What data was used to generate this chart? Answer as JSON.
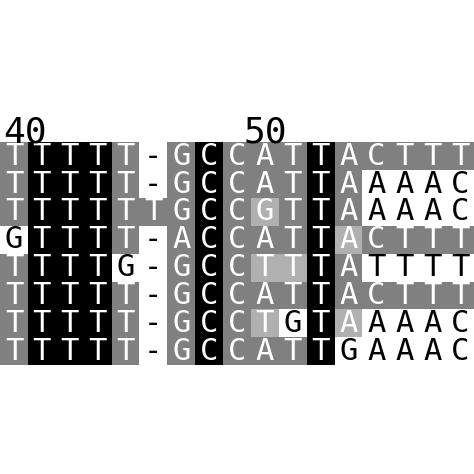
{
  "header_labels": [
    "40",
    "50"
  ],
  "rows": [
    [
      "T",
      "T",
      "T",
      "T",
      "T",
      "-",
      "G",
      "C",
      "C",
      "A",
      "T",
      "T",
      "A",
      "C",
      "T",
      "T",
      "T"
    ],
    [
      "T",
      "T",
      "T",
      "T",
      "T",
      "-",
      "G",
      "C",
      "C",
      "A",
      "T",
      "T",
      "A",
      "A",
      "A",
      "A",
      "C"
    ],
    [
      "T",
      "T",
      "T",
      "T",
      "T",
      "T",
      "G",
      "C",
      "C",
      "G",
      "T",
      "T",
      "A",
      "A",
      "A",
      "A",
      "C"
    ],
    [
      "G",
      "T",
      "T",
      "T",
      "T",
      "-",
      "A",
      "C",
      "C",
      "A",
      "T",
      "T",
      "A",
      "C",
      "T",
      "T",
      "T"
    ],
    [
      "T",
      "T",
      "T",
      "T",
      "G",
      "-",
      "G",
      "C",
      "C",
      "T",
      "T",
      "T",
      "A",
      "T",
      "T",
      "T",
      "T"
    ],
    [
      "T",
      "T",
      "T",
      "T",
      "T",
      "-",
      "G",
      "C",
      "C",
      "A",
      "T",
      "T",
      "A",
      "C",
      "T",
      "T",
      "T"
    ],
    [
      "T",
      "T",
      "T",
      "T",
      "T",
      "-",
      "G",
      "C",
      "C",
      "T",
      "G",
      "T",
      "A",
      "A",
      "A",
      "A",
      "C"
    ],
    [
      "T",
      "T",
      "T",
      "T",
      "T",
      "-",
      "G",
      "C",
      "C",
      "A",
      "T",
      "T",
      "G",
      "A",
      "A",
      "A",
      "C"
    ]
  ],
  "bg_colors": [
    [
      "#808080",
      "#000000",
      "#000000",
      "#000000",
      "#808080",
      "#ffffff",
      "#808080",
      "#000000",
      "#808080",
      "#808080",
      "#808080",
      "#000000",
      "#808080",
      "#808080",
      "#808080",
      "#808080",
      "#808080"
    ],
    [
      "#808080",
      "#000000",
      "#000000",
      "#000000",
      "#808080",
      "#ffffff",
      "#808080",
      "#000000",
      "#808080",
      "#808080",
      "#808080",
      "#000000",
      "#808080",
      "#ffffff",
      "#ffffff",
      "#ffffff",
      "#ffffff"
    ],
    [
      "#808080",
      "#000000",
      "#000000",
      "#000000",
      "#808080",
      "#808080",
      "#808080",
      "#000000",
      "#808080",
      "#b0b0b0",
      "#808080",
      "#000000",
      "#808080",
      "#ffffff",
      "#ffffff",
      "#ffffff",
      "#ffffff"
    ],
    [
      "#ffffff",
      "#000000",
      "#000000",
      "#000000",
      "#808080",
      "#ffffff",
      "#808080",
      "#000000",
      "#808080",
      "#808080",
      "#808080",
      "#000000",
      "#b0b0b0",
      "#808080",
      "#808080",
      "#808080",
      "#808080"
    ],
    [
      "#808080",
      "#000000",
      "#000000",
      "#000000",
      "#ffffff",
      "#ffffff",
      "#808080",
      "#000000",
      "#808080",
      "#b0b0b0",
      "#b0b0b0",
      "#000000",
      "#808080",
      "#ffffff",
      "#ffffff",
      "#ffffff",
      "#ffffff"
    ],
    [
      "#808080",
      "#000000",
      "#000000",
      "#000000",
      "#808080",
      "#ffffff",
      "#808080",
      "#000000",
      "#808080",
      "#808080",
      "#808080",
      "#000000",
      "#808080",
      "#808080",
      "#808080",
      "#808080",
      "#808080"
    ],
    [
      "#808080",
      "#000000",
      "#000000",
      "#000000",
      "#808080",
      "#ffffff",
      "#808080",
      "#000000",
      "#808080",
      "#b0b0b0",
      "#ffffff",
      "#000000",
      "#b0b0b0",
      "#ffffff",
      "#ffffff",
      "#ffffff",
      "#ffffff"
    ],
    [
      "#808080",
      "#000000",
      "#000000",
      "#000000",
      "#808080",
      "#ffffff",
      "#808080",
      "#000000",
      "#808080",
      "#808080",
      "#808080",
      "#000000",
      "#ffffff",
      "#ffffff",
      "#ffffff",
      "#ffffff",
      "#ffffff"
    ]
  ],
  "text_colors": [
    [
      "#ffffff",
      "#ffffff",
      "#ffffff",
      "#ffffff",
      "#ffffff",
      "#000000",
      "#ffffff",
      "#ffffff",
      "#ffffff",
      "#ffffff",
      "#ffffff",
      "#ffffff",
      "#ffffff",
      "#ffffff",
      "#ffffff",
      "#ffffff",
      "#ffffff"
    ],
    [
      "#ffffff",
      "#ffffff",
      "#ffffff",
      "#ffffff",
      "#ffffff",
      "#000000",
      "#ffffff",
      "#ffffff",
      "#ffffff",
      "#ffffff",
      "#ffffff",
      "#ffffff",
      "#ffffff",
      "#000000",
      "#000000",
      "#000000",
      "#000000"
    ],
    [
      "#ffffff",
      "#ffffff",
      "#ffffff",
      "#ffffff",
      "#ffffff",
      "#ffffff",
      "#ffffff",
      "#ffffff",
      "#ffffff",
      "#ffffff",
      "#ffffff",
      "#ffffff",
      "#ffffff",
      "#000000",
      "#000000",
      "#000000",
      "#000000"
    ],
    [
      "#000000",
      "#ffffff",
      "#ffffff",
      "#ffffff",
      "#ffffff",
      "#000000",
      "#ffffff",
      "#ffffff",
      "#ffffff",
      "#ffffff",
      "#ffffff",
      "#ffffff",
      "#ffffff",
      "#ffffff",
      "#ffffff",
      "#ffffff",
      "#ffffff"
    ],
    [
      "#ffffff",
      "#ffffff",
      "#ffffff",
      "#ffffff",
      "#000000",
      "#000000",
      "#ffffff",
      "#ffffff",
      "#ffffff",
      "#ffffff",
      "#ffffff",
      "#ffffff",
      "#ffffff",
      "#000000",
      "#000000",
      "#000000",
      "#000000"
    ],
    [
      "#ffffff",
      "#ffffff",
      "#ffffff",
      "#ffffff",
      "#ffffff",
      "#000000",
      "#ffffff",
      "#ffffff",
      "#ffffff",
      "#ffffff",
      "#ffffff",
      "#ffffff",
      "#ffffff",
      "#ffffff",
      "#ffffff",
      "#ffffff",
      "#ffffff"
    ],
    [
      "#ffffff",
      "#ffffff",
      "#ffffff",
      "#ffffff",
      "#ffffff",
      "#000000",
      "#ffffff",
      "#ffffff",
      "#ffffff",
      "#ffffff",
      "#000000",
      "#ffffff",
      "#ffffff",
      "#000000",
      "#000000",
      "#000000",
      "#000000"
    ],
    [
      "#ffffff",
      "#ffffff",
      "#ffffff",
      "#ffffff",
      "#ffffff",
      "#000000",
      "#ffffff",
      "#ffffff",
      "#ffffff",
      "#ffffff",
      "#ffffff",
      "#ffffff",
      "#000000",
      "#000000",
      "#000000",
      "#000000",
      "#000000"
    ]
  ],
  "font_size": 22,
  "figure_bg": "#ffffff",
  "header_col_40": 0,
  "header_col_50": 9
}
